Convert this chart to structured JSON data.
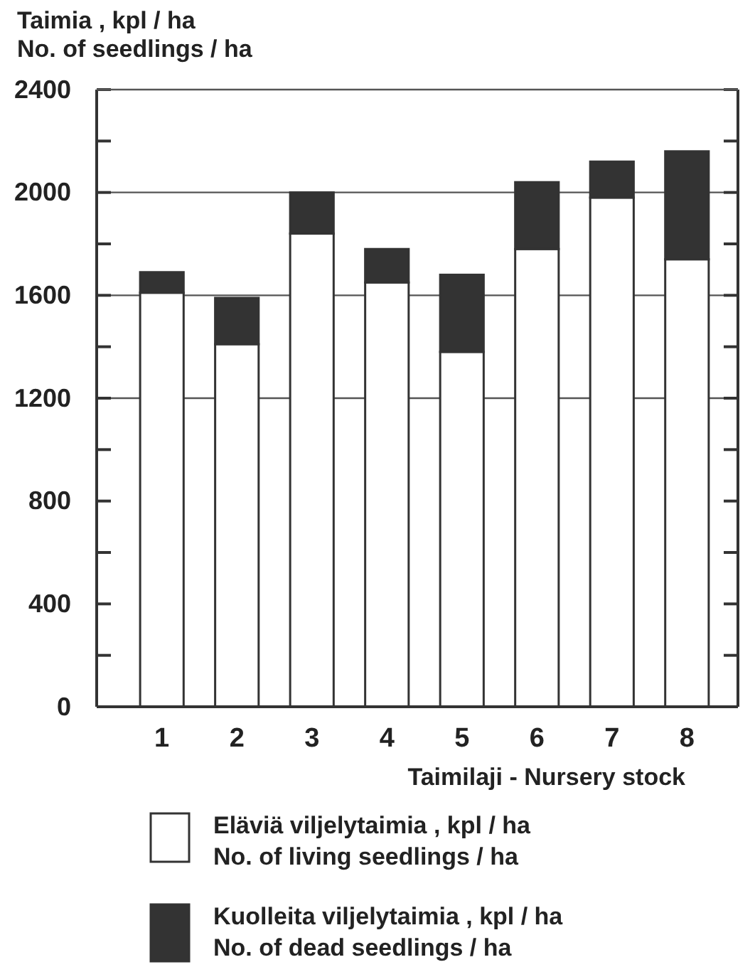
{
  "chart_data": {
    "type": "bar",
    "stacked": true,
    "ylabel": "Taimia , kpl / ha\nNo. of seedlings / ha",
    "xlabel": "Taimilaji - Nursery stock",
    "categories": [
      "1",
      "2",
      "3",
      "4",
      "5",
      "6",
      "7",
      "8"
    ],
    "series": [
      {
        "name": "Eläviä  viljelytaimia , kpl / ha\nNo. of living  seedlings / ha",
        "color": "#ffffff",
        "values": [
          1610,
          1410,
          1840,
          1650,
          1380,
          1780,
          1980,
          1740
        ]
      },
      {
        "name": "Kuolleita  viljelytaimia , kpl / ha\nNo. of dead seedlings / ha",
        "color": "#333333",
        "values": [
          80,
          180,
          160,
          130,
          300,
          260,
          140,
          420
        ]
      }
    ],
    "ylim": [
      0,
      2400
    ],
    "yticks": [
      0,
      {
        "value": 200,
        "label": null
      },
      400,
      {
        "value": 600,
        "label": null
      },
      800,
      {
        "value": 1000,
        "label": null
      },
      1200,
      {
        "value": 1400,
        "label": null
      },
      1600,
      {
        "value": 1800,
        "label": null
      },
      2000,
      {
        "value": 2200,
        "label": null
      },
      2400
    ],
    "ref_lines": [
      {
        "axis": "y",
        "value": 1200,
        "color": "#555555"
      },
      {
        "axis": "y",
        "value": 1600,
        "color": "#555555"
      },
      {
        "axis": "y",
        "value": 2000,
        "color": "#555555"
      }
    ],
    "legend": "bottom"
  }
}
